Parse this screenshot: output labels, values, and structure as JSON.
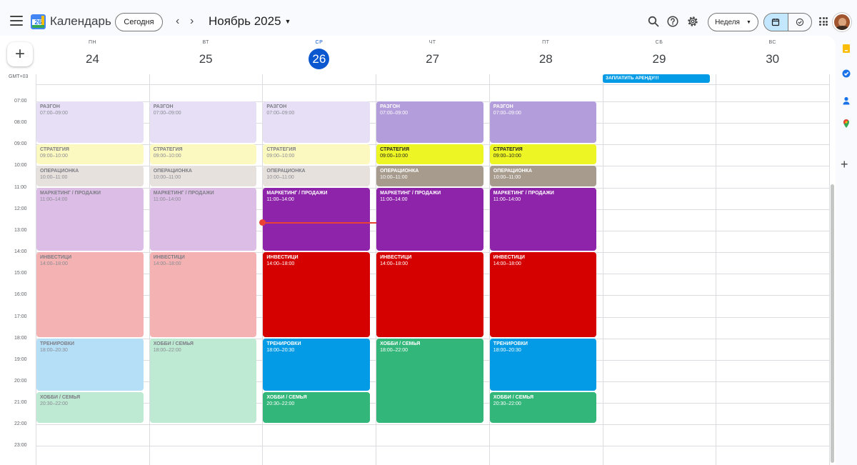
{
  "app": {
    "title": "Календарь",
    "logo_day": "26"
  },
  "header": {
    "today_label": "Сегодня",
    "month_label": "Ноябрь 2025",
    "view_label": "Неделя",
    "icons": [
      "menu-icon",
      "chevron-left-icon",
      "chevron-right-icon",
      "search-icon",
      "help-icon",
      "settings-icon",
      "calendar-view-icon",
      "tasks-view-icon",
      "apps-icon"
    ]
  },
  "timezone": "GMT+03",
  "days": [
    {
      "weekday": "ПН",
      "date": "24"
    },
    {
      "weekday": "ВТ",
      "date": "25"
    },
    {
      "weekday": "СР",
      "date": "26",
      "today": true
    },
    {
      "weekday": "ЧТ",
      "date": "27"
    },
    {
      "weekday": "ПТ",
      "date": "28"
    },
    {
      "weekday": "СБ",
      "date": "29"
    },
    {
      "weekday": "ВС",
      "date": "30"
    }
  ],
  "hours": [
    "07:00",
    "08:00",
    "09:00",
    "10:00",
    "11:00",
    "12:00",
    "13:00",
    "14:00",
    "15:00",
    "16:00",
    "17:00",
    "18:00",
    "19:00",
    "20:00",
    "21:00",
    "22:00",
    "23:00"
  ],
  "allday_event": {
    "title": "ЗАПЛАТИТЬ АРЕНДУ!!!",
    "day": 5,
    "color": "#039be5"
  },
  "events": [
    {
      "day": 0,
      "title": "РАЗГОН",
      "time": "07:00–09:00",
      "start": 7,
      "end": 9,
      "style": "past",
      "color": "#e6dff5"
    },
    {
      "day": 0,
      "title": "СТРАТЕГИЯ",
      "time": "09:00–10:00",
      "start": 9,
      "end": 10,
      "style": "past",
      "color": "#fbf9c0"
    },
    {
      "day": 0,
      "title": "ОПЕРАЦИОНКА",
      "time": "10:00–11:00",
      "start": 10,
      "end": 11,
      "style": "past",
      "color": "#e6e1dc"
    },
    {
      "day": 0,
      "title": "МАРКЕТИНГ / ПРОДАЖИ",
      "time": "11:00–14:00",
      "start": 11,
      "end": 14,
      "style": "past",
      "color": "#dcbde6"
    },
    {
      "day": 0,
      "title": "ИНВЕСТИЦИ",
      "time": "14:00–18:00",
      "start": 14,
      "end": 18,
      "style": "past",
      "color": "#f4b3b2"
    },
    {
      "day": 0,
      "title": "ТРЕНИРОВКИ",
      "time": "18:00–20:30",
      "start": 18,
      "end": 20.5,
      "style": "past",
      "color": "#b5dff6"
    },
    {
      "day": 0,
      "title": "ХОББИ / СЕМЬЯ",
      "time": "20:30–22:00",
      "start": 20.5,
      "end": 22,
      "style": "past",
      "color": "#bee9d3"
    },
    {
      "day": 1,
      "title": "РАЗГОН",
      "time": "07:00–09:00",
      "start": 7,
      "end": 9,
      "style": "past",
      "color": "#e6dff5"
    },
    {
      "day": 1,
      "title": "СТРАТЕГИЯ",
      "time": "09:00–10:00",
      "start": 9,
      "end": 10,
      "style": "past",
      "color": "#fbf9c0"
    },
    {
      "day": 1,
      "title": "ОПЕРАЦИОНКА",
      "time": "10:00–11:00",
      "start": 10,
      "end": 11,
      "style": "past",
      "color": "#e6e1dc"
    },
    {
      "day": 1,
      "title": "МАРКЕТИНГ / ПРОДАЖИ",
      "time": "11:00–14:00",
      "start": 11,
      "end": 14,
      "style": "past",
      "color": "#dcbde6"
    },
    {
      "day": 1,
      "title": "ИНВЕСТИЦИ",
      "time": "14:00–18:00",
      "start": 14,
      "end": 18,
      "style": "past",
      "color": "#f4b3b2"
    },
    {
      "day": 1,
      "title": "ХОББИ / СЕМЬЯ",
      "time": "18:00–22:00",
      "start": 18,
      "end": 22,
      "style": "past",
      "color": "#bee9d3"
    },
    {
      "day": 2,
      "title": "РАЗГОН",
      "time": "07:00–09:00",
      "start": 7,
      "end": 9,
      "style": "past",
      "color": "#e6dff5"
    },
    {
      "day": 2,
      "title": "СТРАТЕГИЯ",
      "time": "09:00–10:00",
      "start": 9,
      "end": 10,
      "style": "past",
      "color": "#fbf9c0"
    },
    {
      "day": 2,
      "title": "ОПЕРАЦИОНКА",
      "time": "10:00–11:00",
      "start": 10,
      "end": 11,
      "style": "past",
      "color": "#e6e1dc"
    },
    {
      "day": 2,
      "title": "МАРКЕТИНГ / ПРОДАЖИ",
      "time": "11:00–14:00",
      "start": 11,
      "end": 14,
      "style": "light",
      "color": "#8e24aa"
    },
    {
      "day": 2,
      "title": "ИНВЕСТИЦИ",
      "time": "14:00–18:00",
      "start": 14,
      "end": 18,
      "style": "light",
      "color": "#d50000"
    },
    {
      "day": 2,
      "title": "ТРЕНИРОВКИ",
      "time": "18:00–20:30",
      "start": 18,
      "end": 20.5,
      "style": "light",
      "color": "#039be5"
    },
    {
      "day": 2,
      "title": "ХОББИ / СЕМЬЯ",
      "time": "20:30–22:00",
      "start": 20.5,
      "end": 22,
      "style": "light",
      "color": "#33b679"
    },
    {
      "day": 3,
      "title": "РАЗГОН",
      "time": "07:00–09:00",
      "start": 7,
      "end": 9,
      "style": "light",
      "color": "#b39ddb"
    },
    {
      "day": 3,
      "title": "СТРАТЕГИЯ",
      "time": "09:00–10:00",
      "start": 9,
      "end": 10,
      "style": "dark",
      "color": "#eef524"
    },
    {
      "day": 3,
      "title": "ОПЕРАЦИОНКА",
      "time": "10:00–11:00",
      "start": 10,
      "end": 11,
      "style": "light",
      "color": "#a79b8e"
    },
    {
      "day": 3,
      "title": "МАРКЕТИНГ / ПРОДАЖИ",
      "time": "11:00–14:00",
      "start": 11,
      "end": 14,
      "style": "light",
      "color": "#8e24aa"
    },
    {
      "day": 3,
      "title": "ИНВЕСТИЦИ",
      "time": "14:00–18:00",
      "start": 14,
      "end": 18,
      "style": "light",
      "color": "#d50000"
    },
    {
      "day": 3,
      "title": "ХОББИ / СЕМЬЯ",
      "time": "18:00–22:00",
      "start": 18,
      "end": 22,
      "style": "light",
      "color": "#33b679"
    },
    {
      "day": 4,
      "title": "РАЗГОН",
      "time": "07:00–09:00",
      "start": 7,
      "end": 9,
      "style": "light",
      "color": "#b39ddb"
    },
    {
      "day": 4,
      "title": "СТРАТЕГИЯ",
      "time": "09:00–10:00",
      "start": 9,
      "end": 10,
      "style": "dark",
      "color": "#eef524"
    },
    {
      "day": 4,
      "title": "ОПЕРАЦИОНКА",
      "time": "10:00–11:00",
      "start": 10,
      "end": 11,
      "style": "light",
      "color": "#a79b8e"
    },
    {
      "day": 4,
      "title": "МАРКЕТИНГ / ПРОДАЖИ",
      "time": "11:00–14:00",
      "start": 11,
      "end": 14,
      "style": "light",
      "color": "#8e24aa"
    },
    {
      "day": 4,
      "title": "ИНВЕСТИЦИ",
      "time": "14:00–18:00",
      "start": 14,
      "end": 18,
      "style": "light",
      "color": "#d50000"
    },
    {
      "day": 4,
      "title": "ТРЕНИРОВКИ",
      "time": "18:00–20:30",
      "start": 18,
      "end": 20.5,
      "style": "light",
      "color": "#039be5"
    },
    {
      "day": 4,
      "title": "ХОББИ / СЕМЬЯ",
      "time": "20:30–22:00",
      "start": 20.5,
      "end": 22,
      "style": "light",
      "color": "#33b679"
    }
  ],
  "side_panel": {
    "icons": [
      "keep-icon",
      "tasks-icon",
      "contacts-icon",
      "maps-icon",
      "add-icon"
    ]
  },
  "colors": {
    "accent": "#0b57d0",
    "now_line": "#ea4335",
    "view_selected": "#c2e7ff"
  }
}
